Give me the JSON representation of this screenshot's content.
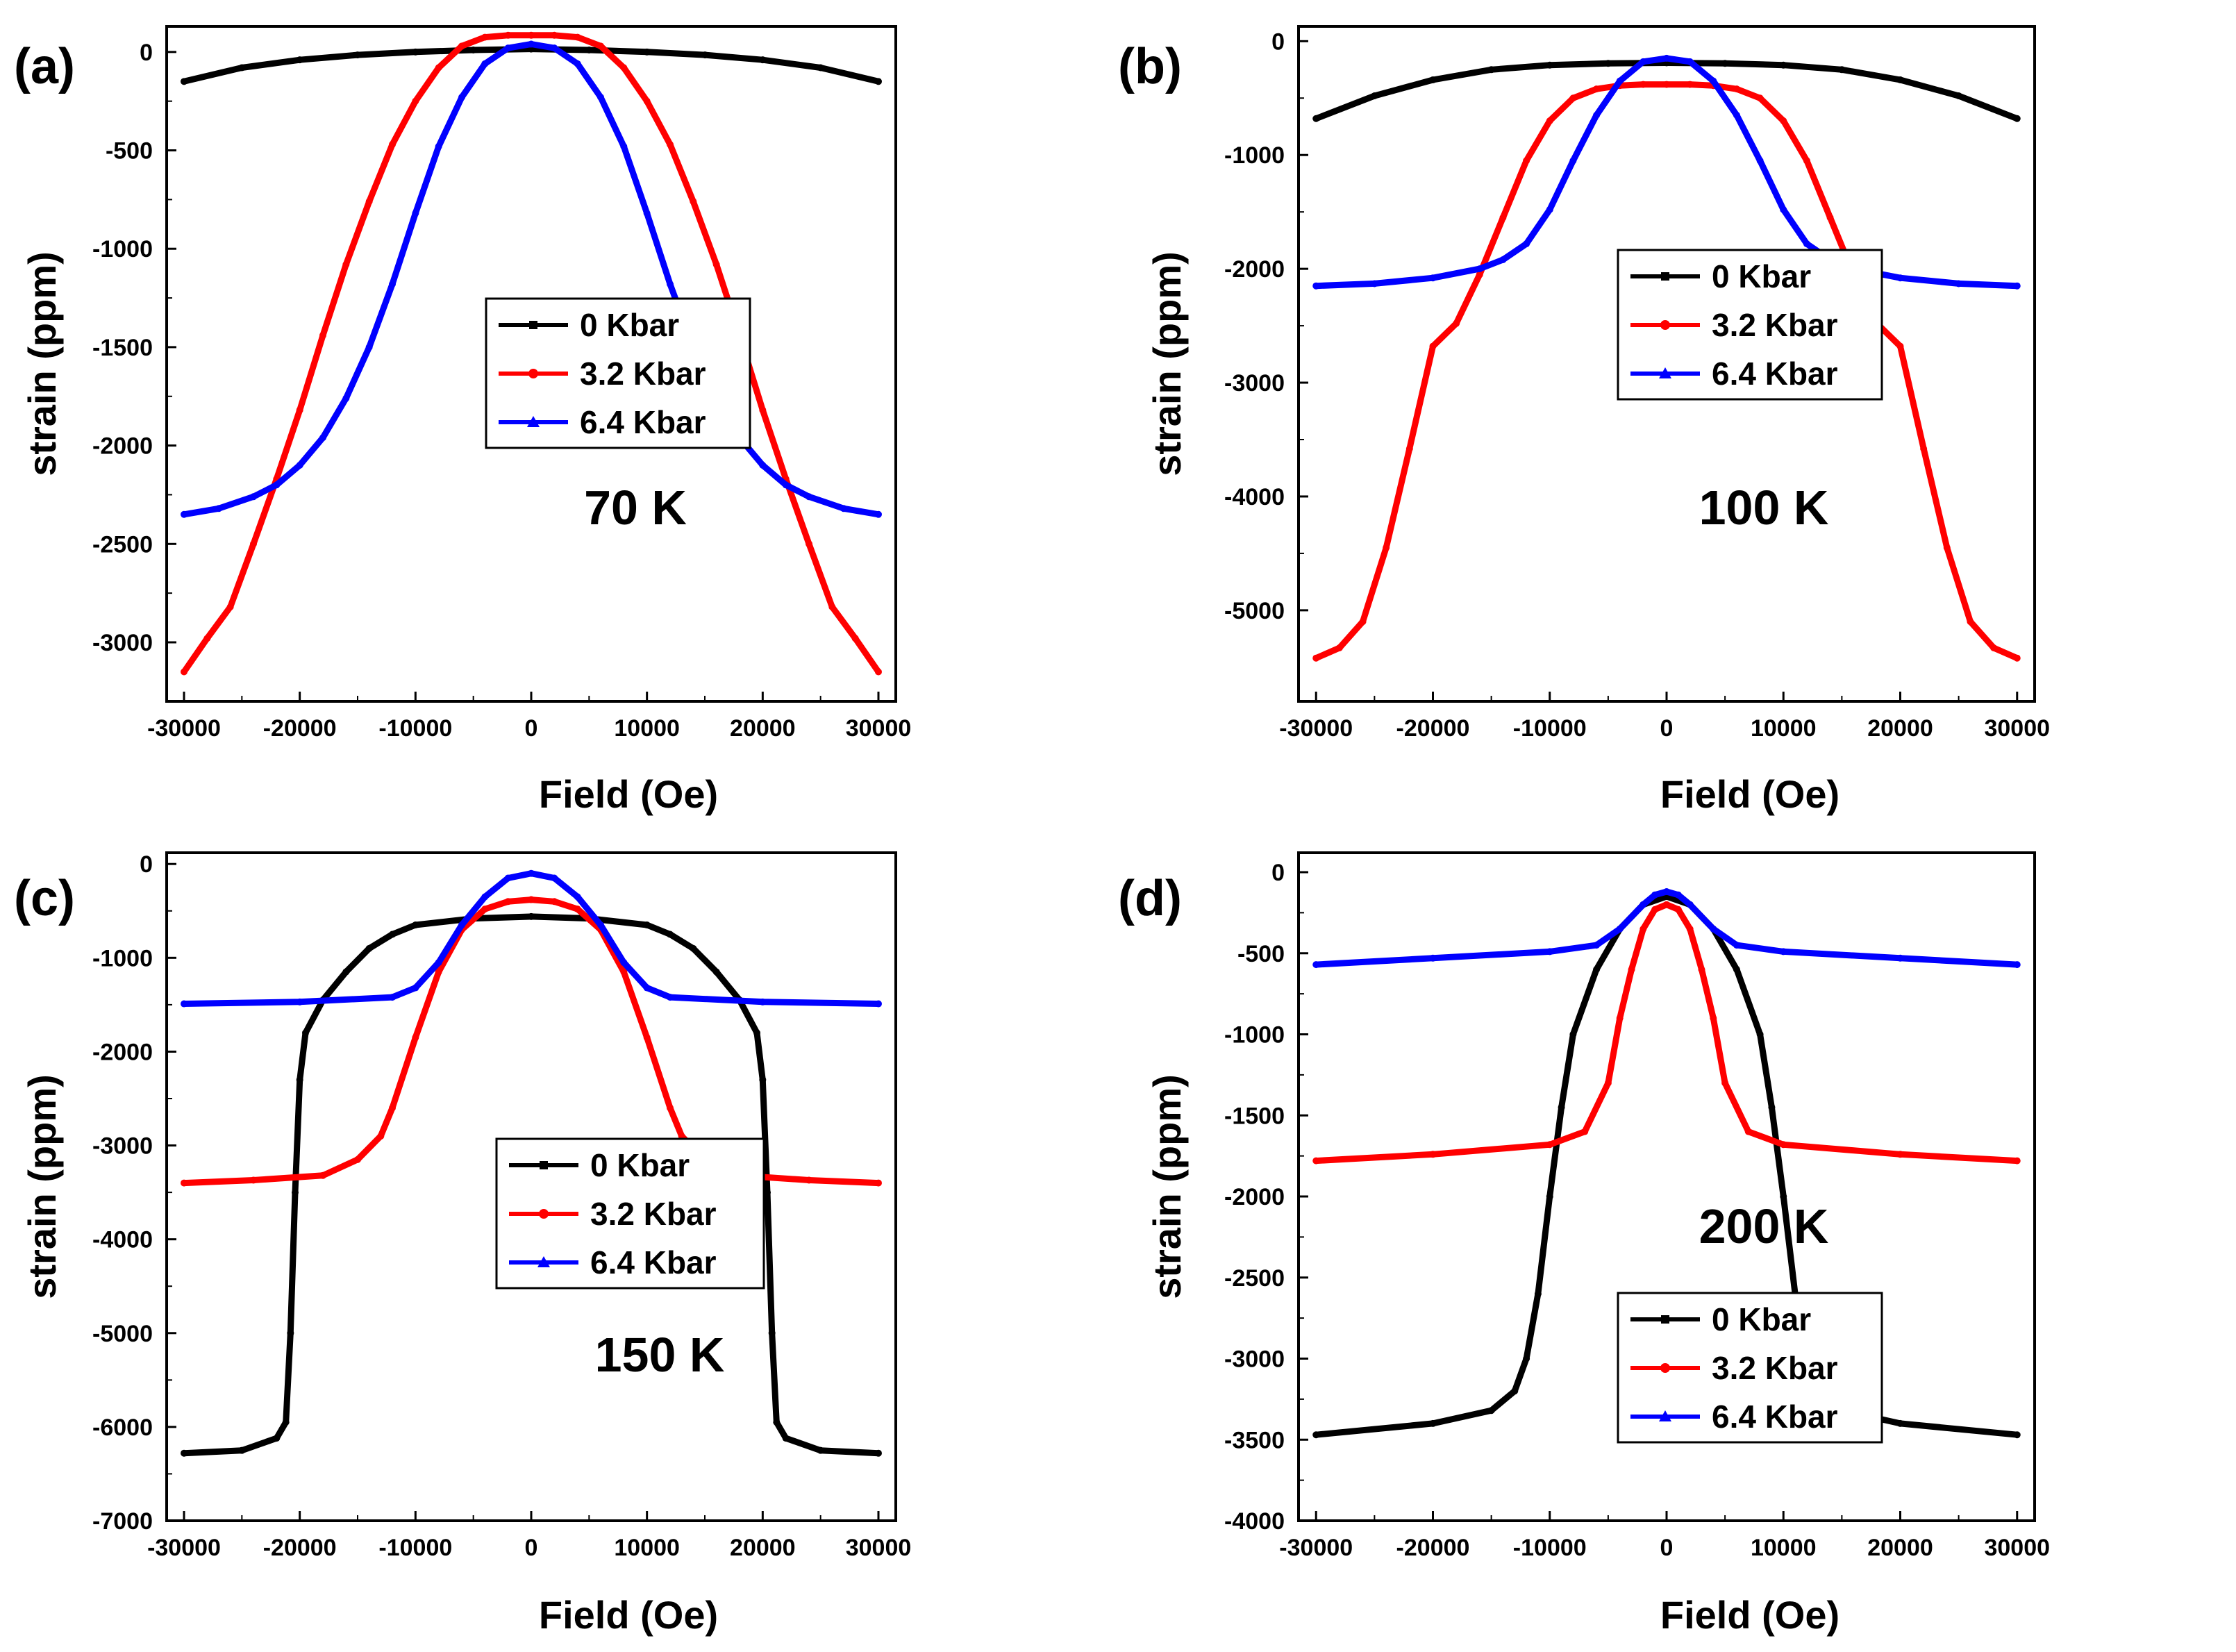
{
  "chart_data": [
    {
      "type": "line",
      "panel_label": "(a)",
      "annotation": "70 K",
      "xlabel": "Field (Oe)",
      "ylabel": "strain (ppm)",
      "xlim": [
        -31500,
        31500
      ],
      "ylim": [
        -3300,
        130
      ],
      "xticks": [
        -30000,
        -20000,
        -10000,
        0,
        10000,
        20000,
        30000
      ],
      "yticks": [
        0,
        -500,
        -1000,
        -1500,
        -2000,
        -2500,
        -3000
      ],
      "legend": [
        "0 Kbar",
        "3.2 Kbar",
        "6.4 Kbar"
      ],
      "series": [
        {
          "name": "0 Kbar",
          "color": "#000000",
          "x": [
            -30000,
            -25000,
            -20000,
            -15000,
            -10000,
            -5000,
            0,
            5000,
            10000,
            15000,
            20000,
            25000,
            30000
          ],
          "y": [
            -150,
            -80,
            -40,
            -15,
            0,
            10,
            15,
            10,
            0,
            -15,
            -40,
            -80,
            -150
          ]
        },
        {
          "name": "3.2 Kbar",
          "color": "#ff0000",
          "x": [
            -30000,
            -28000,
            -26000,
            -24000,
            -22000,
            -20000,
            -18000,
            -16000,
            -14000,
            -12000,
            -10000,
            -8000,
            -6000,
            -4000,
            -2000,
            0,
            2000,
            4000,
            6000,
            8000,
            10000,
            12000,
            14000,
            16000,
            18000,
            20000,
            22000,
            24000,
            26000,
            28000,
            30000
          ],
          "y": [
            -3150,
            -2980,
            -2820,
            -2500,
            -2170,
            -1820,
            -1440,
            -1080,
            -760,
            -470,
            -250,
            -80,
            30,
            75,
            85,
            85,
            85,
            75,
            30,
            -80,
            -250,
            -470,
            -760,
            -1080,
            -1440,
            -1820,
            -2170,
            -2500,
            -2820,
            -2980,
            -3150
          ]
        },
        {
          "name": "6.4 Kbar",
          "color": "#0000ff",
          "x": [
            -30000,
            -27000,
            -24000,
            -22000,
            -20000,
            -18000,
            -16000,
            -14000,
            -12000,
            -10000,
            -8000,
            -6000,
            -4000,
            -2000,
            0,
            2000,
            4000,
            6000,
            8000,
            10000,
            12000,
            14000,
            16000,
            18000,
            20000,
            22000,
            24000,
            27000,
            30000
          ],
          "y": [
            -2350,
            -2320,
            -2260,
            -2200,
            -2100,
            -1960,
            -1760,
            -1500,
            -1180,
            -820,
            -480,
            -230,
            -60,
            20,
            40,
            20,
            -60,
            -230,
            -480,
            -820,
            -1180,
            -1500,
            -1760,
            -1960,
            -2100,
            -2200,
            -2260,
            -2320,
            -2350
          ]
        }
      ]
    },
    {
      "type": "line",
      "panel_label": "(b)",
      "annotation": "100 K",
      "xlabel": "Field (Oe)",
      "ylabel": "strain (ppm)",
      "xlim": [
        -31500,
        31500
      ],
      "ylim": [
        -5800,
        130
      ],
      "xticks": [
        -30000,
        -20000,
        -10000,
        0,
        10000,
        20000,
        30000
      ],
      "yticks": [
        0,
        -1000,
        -2000,
        -3000,
        -4000,
        -5000
      ],
      "legend": [
        "0 Kbar",
        "3.2 Kbar",
        "6.4 Kbar"
      ],
      "series": [
        {
          "name": "0 Kbar",
          "color": "#000000",
          "x": [
            -30000,
            -25000,
            -20000,
            -15000,
            -10000,
            -5000,
            0,
            5000,
            10000,
            15000,
            20000,
            25000,
            30000
          ],
          "y": [
            -680,
            -480,
            -340,
            -250,
            -210,
            -195,
            -190,
            -195,
            -210,
            -250,
            -340,
            -480,
            -680
          ]
        },
        {
          "name": "3.2 Kbar",
          "color": "#ff0000",
          "x": [
            -30000,
            -28000,
            -26000,
            -24000,
            -22000,
            -20000,
            -18000,
            -16000,
            -14000,
            -12000,
            -10000,
            -8000,
            -6000,
            -4000,
            -2000,
            0,
            2000,
            4000,
            6000,
            8000,
            10000,
            12000,
            14000,
            16000,
            18000,
            20000,
            22000,
            24000,
            26000,
            28000,
            30000
          ],
          "y": [
            -5420,
            -5330,
            -5100,
            -4450,
            -3580,
            -2680,
            -2480,
            -2050,
            -1550,
            -1050,
            -700,
            -500,
            -420,
            -390,
            -380,
            -380,
            -380,
            -390,
            -420,
            -500,
            -700,
            -1050,
            -1550,
            -2050,
            -2480,
            -2680,
            -3580,
            -4450,
            -5100,
            -5330,
            -5420
          ]
        },
        {
          "name": "6.4 Kbar",
          "color": "#0000ff",
          "x": [
            -30000,
            -25000,
            -20000,
            -16000,
            -14000,
            -12000,
            -10000,
            -8000,
            -6000,
            -4000,
            -2000,
            0,
            2000,
            4000,
            6000,
            8000,
            10000,
            12000,
            14000,
            16000,
            20000,
            25000,
            30000
          ],
          "y": [
            -2150,
            -2130,
            -2080,
            -2000,
            -1920,
            -1780,
            -1480,
            -1050,
            -650,
            -350,
            -180,
            -150,
            -180,
            -350,
            -650,
            -1050,
            -1480,
            -1780,
            -1920,
            -2000,
            -2080,
            -2130,
            -2150
          ]
        }
      ]
    },
    {
      "type": "line",
      "panel_label": "(c)",
      "annotation": "150 K",
      "xlabel": "Field (Oe)",
      "ylabel": "strain (ppm)",
      "xlim": [
        -31500,
        31500
      ],
      "ylim": [
        -7000,
        120
      ],
      "xticks": [
        -30000,
        -20000,
        -10000,
        0,
        10000,
        20000,
        30000
      ],
      "yticks": [
        0,
        -1000,
        -2000,
        -3000,
        -4000,
        -5000,
        -6000,
        -7000
      ],
      "legend": [
        "0 Kbar",
        "3.2 Kbar",
        "6.4 Kbar"
      ],
      "series": [
        {
          "name": "0 Kbar",
          "color": "#000000",
          "x": [
            -30000,
            -25000,
            -22000,
            -21200,
            -20800,
            -20400,
            -20000,
            -19500,
            -18000,
            -16000,
            -14000,
            -12000,
            -10000,
            -5000,
            0,
            5000,
            10000,
            12000,
            14000,
            16000,
            18000,
            19500,
            20000,
            20400,
            20800,
            21200,
            22000,
            25000,
            30000
          ],
          "y": [
            -6280,
            -6250,
            -6120,
            -5950,
            -5000,
            -3500,
            -2300,
            -1800,
            -1450,
            -1150,
            -900,
            -750,
            -650,
            -580,
            -560,
            -580,
            -650,
            -750,
            -900,
            -1150,
            -1450,
            -1800,
            -2300,
            -3500,
            -5000,
            -5950,
            -6120,
            -6250,
            -6280
          ]
        },
        {
          "name": "3.2 Kbar",
          "color": "#ff0000",
          "x": [
            -30000,
            -24000,
            -18000,
            -15000,
            -13000,
            -12000,
            -10000,
            -8000,
            -6000,
            -4000,
            -2000,
            0,
            2000,
            4000,
            6000,
            8000,
            10000,
            12000,
            13000,
            15000,
            18000,
            24000,
            30000
          ],
          "y": [
            -3400,
            -3370,
            -3320,
            -3150,
            -2900,
            -2600,
            -1850,
            -1150,
            -700,
            -480,
            -400,
            -380,
            -400,
            -480,
            -700,
            -1150,
            -1850,
            -2600,
            -2900,
            -3150,
            -3320,
            -3370,
            -3400
          ]
        },
        {
          "name": "6.4 Kbar",
          "color": "#0000ff",
          "x": [
            -30000,
            -20000,
            -12000,
            -10000,
            -8000,
            -6000,
            -4000,
            -2000,
            0,
            2000,
            4000,
            6000,
            8000,
            10000,
            12000,
            20000,
            30000
          ],
          "y": [
            -1490,
            -1470,
            -1420,
            -1320,
            -1050,
            -650,
            -350,
            -150,
            -100,
            -150,
            -350,
            -650,
            -1050,
            -1320,
            -1420,
            -1470,
            -1490
          ]
        }
      ]
    },
    {
      "type": "line",
      "panel_label": "(d)",
      "annotation": "200 K",
      "xlabel": "Field (Oe)",
      "ylabel": "strain (ppm)",
      "xlim": [
        -31500,
        31500
      ],
      "ylim": [
        -4000,
        120
      ],
      "xticks": [
        -30000,
        -20000,
        -10000,
        0,
        10000,
        20000,
        30000
      ],
      "yticks": [
        0,
        -500,
        -1000,
        -1500,
        -2000,
        -2500,
        -3000,
        -3500,
        -4000
      ],
      "legend": [
        "0 Kbar",
        "3.2 Kbar",
        "6.4 Kbar"
      ],
      "series": [
        {
          "name": "0 Kbar",
          "color": "#000000",
          "x": [
            -30000,
            -20000,
            -15000,
            -13000,
            -12000,
            -11000,
            -10000,
            -9000,
            -8000,
            -6000,
            -4000,
            -2000,
            0,
            2000,
            4000,
            6000,
            8000,
            9000,
            10000,
            11000,
            12000,
            13000,
            15000,
            20000,
            30000
          ],
          "y": [
            -3470,
            -3400,
            -3320,
            -3200,
            -3000,
            -2600,
            -2000,
            -1450,
            -1000,
            -600,
            -350,
            -200,
            -150,
            -200,
            -350,
            -600,
            -1000,
            -1450,
            -2000,
            -2600,
            -3000,
            -3200,
            -3320,
            -3400,
            -3470
          ]
        },
        {
          "name": "3.2 Kbar",
          "color": "#ff0000",
          "x": [
            -30000,
            -20000,
            -10000,
            -7000,
            -5000,
            -4000,
            -3000,
            -2000,
            -1000,
            0,
            1000,
            2000,
            3000,
            4000,
            5000,
            7000,
            10000,
            20000,
            30000
          ],
          "y": [
            -1780,
            -1740,
            -1680,
            -1600,
            -1300,
            -900,
            -600,
            -350,
            -230,
            -200,
            -230,
            -350,
            -600,
            -900,
            -1300,
            -1600,
            -1680,
            -1740,
            -1780
          ]
        },
        {
          "name": "6.4 Kbar",
          "color": "#0000ff",
          "x": [
            -30000,
            -20000,
            -10000,
            -6000,
            -4000,
            -2000,
            -1000,
            0,
            1000,
            2000,
            4000,
            6000,
            10000,
            20000,
            30000
          ],
          "y": [
            -570,
            -530,
            -490,
            -450,
            -350,
            -200,
            -140,
            -120,
            -140,
            -200,
            -350,
            -450,
            -490,
            -530,
            -570
          ]
        }
      ]
    }
  ]
}
